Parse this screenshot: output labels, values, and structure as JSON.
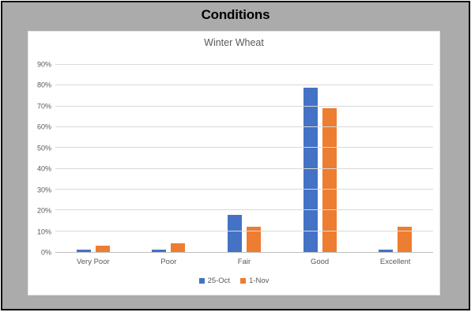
{
  "window": {
    "title": "Conditions"
  },
  "chart_data": {
    "type": "bar",
    "title": "Winter Wheat",
    "categories": [
      "Very Poor",
      "Poor",
      "Fair",
      "Good",
      "Excellent"
    ],
    "series": [
      {
        "name": "25-Oct",
        "color": "#4472C4",
        "values": [
          1,
          1,
          18,
          79,
          1
        ]
      },
      {
        "name": "1-Nov",
        "color": "#ED7D31",
        "values": [
          3,
          4,
          12,
          69,
          12
        ]
      }
    ],
    "xlabel": "",
    "ylabel": "",
    "ylim": [
      0,
      90
    ],
    "ytick_step": 10,
    "ytick_labels": [
      "0%",
      "10%",
      "20%",
      "30%",
      "40%",
      "50%",
      "60%",
      "70%",
      "80%",
      "90%"
    ],
    "grid": true,
    "legend_position": "bottom"
  },
  "colors": {
    "frame_background": "#ACABAB",
    "frame_border": "#000000",
    "panel_background": "#FFFFFF",
    "gridline": "#D9D9D9",
    "axis_line": "#BFBFBF",
    "axis_text": "#595959",
    "series_blue": "#4472C4",
    "series_orange": "#ED7D31"
  }
}
